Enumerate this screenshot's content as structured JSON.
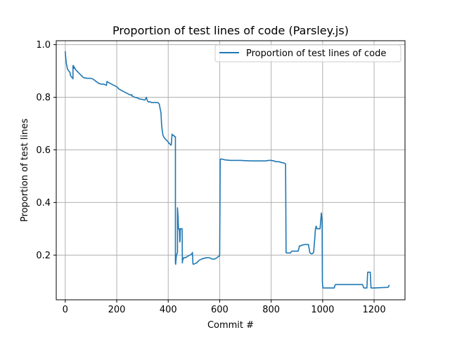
{
  "chart_data": {
    "type": "line",
    "title": "Proportion of test lines of code (Parsley.js)",
    "xlabel": "Commit #",
    "ylabel": "Proportion of test lines",
    "xlim": [
      -35,
      1320
    ],
    "ylim": [
      0.03,
      1.015
    ],
    "xticks": [
      0,
      200,
      400,
      600,
      800,
      1000,
      1200
    ],
    "yticks": [
      0.2,
      0.4,
      0.6,
      0.8,
      1.0
    ],
    "xtick_labels": [
      "0",
      "200",
      "400",
      "600",
      "800",
      "1000",
      "1200"
    ],
    "ytick_labels": [
      "0.2",
      "0.4",
      "0.6",
      "0.8",
      "1.0"
    ],
    "grid": true,
    "legend_position": "top-right",
    "series": [
      {
        "name": "Proportion of test lines of code",
        "color": "#1f77b4",
        "x": [
          0,
          1,
          2,
          4,
          6,
          8,
          10,
          14,
          18,
          20,
          22,
          26,
          28,
          30,
          30,
          32,
          33,
          35,
          40,
          45,
          50,
          60,
          70,
          80,
          85,
          90,
          95,
          100,
          110,
          120,
          130,
          140,
          150,
          160,
          162,
          165,
          170,
          180,
          190,
          200,
          205,
          210,
          215,
          220,
          230,
          240,
          250,
          255,
          258,
          260,
          270,
          280,
          285,
          290,
          295,
          300,
          305,
          310,
          315,
          318,
          320,
          325,
          330,
          335,
          340,
          350,
          360,
          365,
          368,
          372,
          374,
          376,
          378,
          380,
          385,
          390,
          395,
          400,
          402,
          405,
          408,
          410,
          412,
          415,
          418,
          420,
          422,
          425,
          428,
          428,
          429,
          430,
          432,
          434,
          436,
          436,
          438,
          440,
          442,
          444,
          445,
          446,
          447,
          448,
          450,
          452,
          454,
          455,
          456,
          458,
          460,
          462,
          464,
          466,
          468,
          470,
          475,
          480,
          485,
          490,
          492,
          494,
          495,
          496,
          497,
          498,
          505,
          510,
          515,
          520,
          530,
          540,
          550,
          560,
          570,
          580,
          590,
          595,
          598,
          600,
          602,
          605,
          610,
          620,
          640,
          660,
          680,
          700,
          720,
          740,
          760,
          780,
          790,
          800,
          810,
          820,
          830,
          840,
          850,
          855,
          856,
          858,
          860,
          865,
          870,
          875,
          880,
          882,
          890,
          900,
          905,
          910,
          915,
          920,
          930,
          940,
          945,
          950,
          955,
          960,
          965,
          970,
          972,
          975,
          978,
          980,
          985,
          990,
          995,
          998,
          999,
          1000,
          1001,
          1002,
          1005,
          1010,
          1020,
          1030,
          1040,
          1045,
          1048,
          1050,
          1060,
          1080,
          1100,
          1120,
          1140,
          1150,
          1155,
          1160,
          1165,
          1170,
          1172,
          1175,
          1180,
          1185,
          1188,
          1190,
          1200,
          1220,
          1240,
          1250,
          1255,
          1258,
          1260
        ],
        "y": [
          0.975,
          0.96,
          0.95,
          0.93,
          0.92,
          0.91,
          0.905,
          0.9,
          0.895,
          0.885,
          0.88,
          0.875,
          0.875,
          0.87,
          0.92,
          0.92,
          0.91,
          0.915,
          0.905,
          0.9,
          0.895,
          0.885,
          0.875,
          0.873,
          0.872,
          0.872,
          0.872,
          0.872,
          0.868,
          0.86,
          0.853,
          0.85,
          0.85,
          0.845,
          0.86,
          0.858,
          0.855,
          0.85,
          0.845,
          0.84,
          0.835,
          0.83,
          0.828,
          0.825,
          0.82,
          0.815,
          0.81,
          0.808,
          0.81,
          0.805,
          0.8,
          0.798,
          0.795,
          0.793,
          0.793,
          0.792,
          0.79,
          0.79,
          0.8,
          0.79,
          0.785,
          0.782,
          0.783,
          0.78,
          0.78,
          0.78,
          0.78,
          0.775,
          0.76,
          0.74,
          0.7,
          0.68,
          0.665,
          0.655,
          0.645,
          0.64,
          0.635,
          0.63,
          0.625,
          0.625,
          0.62,
          0.618,
          0.62,
          0.66,
          0.655,
          0.655,
          0.655,
          0.65,
          0.65,
          0.17,
          0.165,
          0.18,
          0.2,
          0.205,
          0.21,
          0.38,
          0.35,
          0.3,
          0.3,
          0.29,
          0.25,
          0.255,
          0.3,
          0.3,
          0.3,
          0.3,
          0.3,
          0.17,
          0.18,
          0.185,
          0.19,
          0.19,
          0.19,
          0.19,
          0.19,
          0.192,
          0.195,
          0.198,
          0.2,
          0.203,
          0.205,
          0.21,
          0.19,
          0.168,
          0.165,
          0.165,
          0.168,
          0.17,
          0.175,
          0.18,
          0.185,
          0.188,
          0.19,
          0.19,
          0.185,
          0.185,
          0.19,
          0.195,
          0.195,
          0.2,
          0.565,
          0.565,
          0.565,
          0.562,
          0.56,
          0.56,
          0.56,
          0.559,
          0.558,
          0.558,
          0.558,
          0.558,
          0.56,
          0.56,
          0.558,
          0.555,
          0.555,
          0.552,
          0.55,
          0.548,
          0.545,
          0.21,
          0.208,
          0.208,
          0.208,
          0.208,
          0.215,
          0.215,
          0.215,
          0.215,
          0.215,
          0.235,
          0.235,
          0.238,
          0.24,
          0.24,
          0.24,
          0.21,
          0.205,
          0.205,
          0.21,
          0.27,
          0.3,
          0.31,
          0.3,
          0.3,
          0.3,
          0.3,
          0.36,
          0.33,
          0.1,
          0.085,
          0.075,
          0.075,
          0.075,
          0.075,
          0.075,
          0.075,
          0.075,
          0.075,
          0.085,
          0.088,
          0.088,
          0.088,
          0.088,
          0.088,
          0.088,
          0.088,
          0.088,
          0.075,
          0.075,
          0.075,
          0.075,
          0.135,
          0.135,
          0.135,
          0.075,
          0.075,
          0.075,
          0.076,
          0.077,
          0.077,
          0.078,
          0.085,
          0.085
        ]
      }
    ]
  }
}
